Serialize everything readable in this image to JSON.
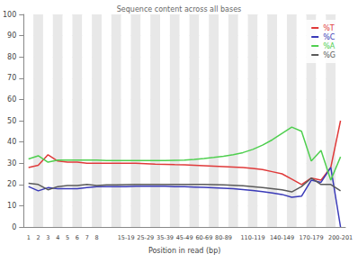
{
  "chart_data": {
    "type": "line",
    "title": "Sequence content across all bases",
    "x_label": "Position in read (bp)",
    "categories": [
      "1",
      "2",
      "3",
      "4",
      "5",
      "6",
      "7",
      "8",
      null,
      null,
      "15-19",
      null,
      "25-29",
      null,
      "35-39",
      null,
      "45-49",
      null,
      "60-69",
      null,
      "80-89",
      null,
      null,
      "110-119",
      null,
      null,
      "140-149",
      null,
      null,
      "170-179",
      null,
      null,
      "200-201"
    ],
    "series": [
      {
        "name": "%T",
        "color": "#e03a3a",
        "values": [
          28,
          29,
          34,
          31,
          30.5,
          30.5,
          30,
          30,
          30,
          30,
          30,
          30,
          29.8,
          29.6,
          29.5,
          29.3,
          29.2,
          29,
          28.8,
          28.6,
          28.4,
          28.2,
          28,
          27.5,
          27,
          26,
          25,
          22.5,
          20,
          23,
          22,
          28,
          50
        ]
      },
      {
        "name": "%C",
        "color": "#3a3ab8",
        "values": [
          19,
          17,
          18.5,
          18,
          18,
          18,
          18.5,
          19,
          19,
          19,
          19,
          19.2,
          19.2,
          19.2,
          19.2,
          19,
          19,
          18.8,
          18.6,
          18.4,
          18.2,
          18,
          17.6,
          17.2,
          16.6,
          16,
          15.3,
          14,
          14.5,
          22,
          21,
          28,
          0
        ]
      },
      {
        "name": "%A",
        "color": "#4fcf4f",
        "values": [
          32,
          33.5,
          30.5,
          31.5,
          31.5,
          31.5,
          31.5,
          31.5,
          31.3,
          31.3,
          31.3,
          31.2,
          31.2,
          31.2,
          31.3,
          31.4,
          31.5,
          31.8,
          32.2,
          32.7,
          33.3,
          34,
          35,
          36.5,
          38.5,
          41,
          44,
          47,
          45,
          31,
          36,
          22,
          33
        ]
      },
      {
        "name": "%G",
        "color": "#5a5a5a",
        "values": [
          20.5,
          20,
          17.5,
          19,
          19.5,
          19.5,
          20,
          19.5,
          19.8,
          19.8,
          19.9,
          20,
          20,
          20,
          20,
          20,
          20,
          20,
          20,
          19.9,
          19.8,
          19.6,
          19.4,
          19,
          18.5,
          18,
          17.5,
          16.5,
          19,
          23,
          20,
          20,
          17
        ]
      }
    ],
    "ylim": [
      0,
      100
    ],
    "yticks": [
      0,
      10,
      20,
      30,
      40,
      50,
      60,
      70,
      80,
      90,
      100
    ],
    "grid": true,
    "legend": "upper right"
  }
}
